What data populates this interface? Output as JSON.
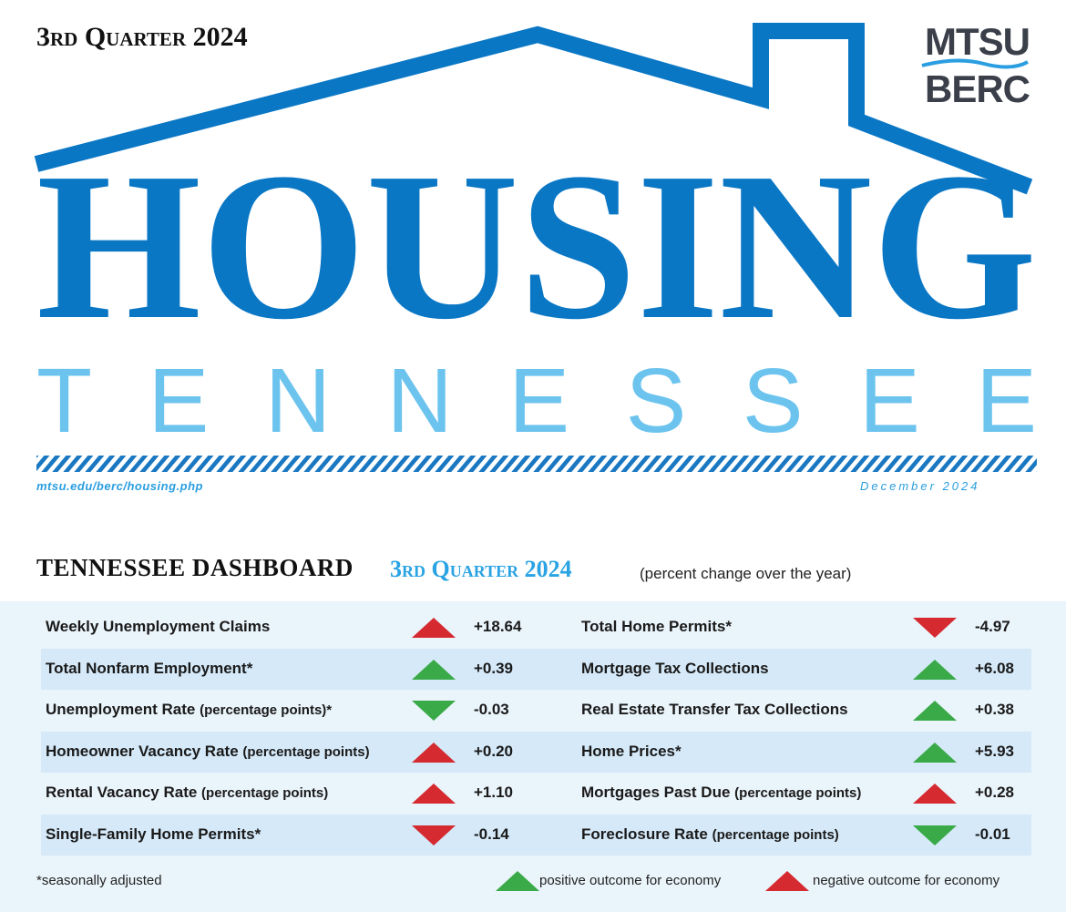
{
  "header": {
    "quarter": "3rd Quarter 2024",
    "logo_top": "MTSU",
    "logo_bottom": "BERC",
    "title": "HOUSING",
    "subtitle": "TENNESSEE",
    "url": "mtsu.edu/berc/housing.php",
    "date": "December 2024"
  },
  "dashboard": {
    "title": "TENNESSEE DASHBOARD",
    "period": "3rd Quarter 2024",
    "note": "(percent change over the year)",
    "colors": {
      "positive": "#3aaa48",
      "negative": "#d42a30"
    },
    "left": [
      {
        "label": "Weekly Unemployment Claims",
        "value": "+18.64",
        "direction": "up",
        "outcome": "negative"
      },
      {
        "label": "Total Nonfarm Employment*",
        "value": "+0.39",
        "direction": "up",
        "outcome": "positive"
      },
      {
        "label": "Unemployment Rate",
        "qualifier": "(percentage points)*",
        "value": "-0.03",
        "direction": "down",
        "outcome": "positive"
      },
      {
        "label": "Homeowner Vacancy Rate",
        "qualifier": "(percentage points)",
        "value": "+0.20",
        "direction": "up",
        "outcome": "negative"
      },
      {
        "label": "Rental Vacancy Rate",
        "qualifier": "(percentage points)",
        "value": "+1.10",
        "direction": "up",
        "outcome": "negative"
      },
      {
        "label": "Single-Family Home Permits*",
        "value": "-0.14",
        "direction": "down",
        "outcome": "negative"
      }
    ],
    "right": [
      {
        "label": "Total Home Permits*",
        "value": "-4.97",
        "direction": "down",
        "outcome": "negative"
      },
      {
        "label": "Mortgage Tax Collections",
        "value": "+6.08",
        "direction": "up",
        "outcome": "positive"
      },
      {
        "label": "Real Estate Transfer Tax Collections",
        "value": "+0.38",
        "direction": "up",
        "outcome": "positive"
      },
      {
        "label": "Home Prices*",
        "value": "+5.93",
        "direction": "up",
        "outcome": "positive"
      },
      {
        "label": "Mortgages Past Due",
        "qualifier": "(percentage points)",
        "value": "+0.28",
        "direction": "up",
        "outcome": "negative"
      },
      {
        "label": "Foreclosure Rate",
        "qualifier": "(percentage points)",
        "value": "-0.01",
        "direction": "down",
        "outcome": "positive"
      }
    ]
  },
  "footer": {
    "note": "*seasonally adjusted",
    "positive_legend": "positive outcome for economy",
    "negative_legend": "negative outcome for economy"
  }
}
